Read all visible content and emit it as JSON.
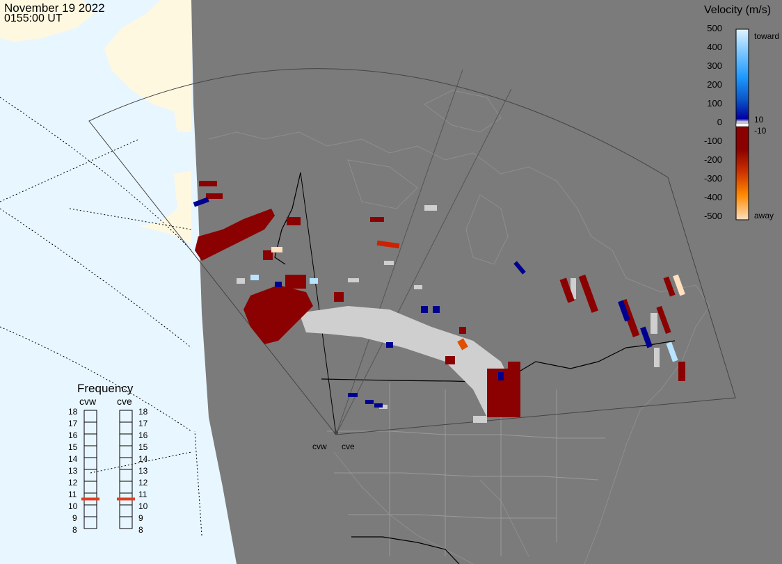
{
  "header": {
    "date": "November 19 2022",
    "time": "0155:00 UT"
  },
  "velocity_scale": {
    "title": "Velocity (m/s)",
    "ticks": [
      "500",
      "400",
      "300",
      "200",
      "100",
      "0",
      "-100",
      "-200",
      "-300",
      "-400",
      "-500"
    ],
    "toward_label": "toward",
    "away_label": "away",
    "pos_threshold_label": "10",
    "neg_threshold_label": "-10",
    "colors": {
      "toward_light": "#dff3ff",
      "toward_mid": "#1e9aff",
      "toward_dark": "#0000a0",
      "away_dark": "#8b0000",
      "away_mid": "#e05000",
      "away_light": "#ffe0c0",
      "ground_scatter": "#c8c8c8"
    }
  },
  "frequency_panel": {
    "title": "Frequency",
    "sites": [
      "cvw",
      "cve"
    ],
    "scale": [
      "18",
      "17",
      "16",
      "15",
      "14",
      "13",
      "12",
      "11",
      "10",
      "9",
      "8"
    ],
    "cvw_mhz": 11,
    "cve_mhz": 11,
    "marker_color": "#e04020"
  },
  "radar_sites": {
    "west_label": "cvw",
    "east_label": "cve"
  },
  "map_colors": {
    "night": "#7b7b7b",
    "day_ocean": "#e8f6ff",
    "day_land": "#fff8e0"
  }
}
